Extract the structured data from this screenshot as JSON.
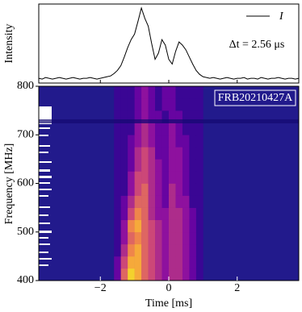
{
  "chart_data": [
    {
      "type": "line",
      "ylabel": "Intensity",
      "annotation": "Δt = 2.56 μs",
      "x": [
        -3.8,
        -3.7,
        -3.6,
        -3.5,
        -3.4,
        -3.3,
        -3.2,
        -3.1,
        -3.0,
        -2.9,
        -2.8,
        -2.7,
        -2.6,
        -2.5,
        -2.4,
        -2.3,
        -2.2,
        -2.1,
        -2.0,
        -1.9,
        -1.8,
        -1.7,
        -1.6,
        -1.5,
        -1.4,
        -1.3,
        -1.2,
        -1.1,
        -1.0,
        -0.9,
        -0.8,
        -0.7,
        -0.6,
        -0.5,
        -0.4,
        -0.3,
        -0.2,
        -0.1,
        0.0,
        0.1,
        0.2,
        0.3,
        0.4,
        0.5,
        0.6,
        0.7,
        0.8,
        0.9,
        1.0,
        1.1,
        1.2,
        1.3,
        1.4,
        1.5,
        1.6,
        1.7,
        1.8,
        1.9,
        2.0,
        2.1,
        2.2,
        2.3,
        2.4,
        2.5,
        2.6,
        2.7,
        2.8,
        2.9,
        3.0,
        3.1,
        3.2,
        3.3,
        3.4,
        3.5,
        3.6,
        3.7,
        3.8
      ],
      "series": [
        {
          "name": "I",
          "color": "#000000",
          "values": [
            0.06,
            0.05,
            0.07,
            0.06,
            0.05,
            0.06,
            0.07,
            0.06,
            0.05,
            0.06,
            0.07,
            0.06,
            0.05,
            0.06,
            0.06,
            0.07,
            0.06,
            0.05,
            0.06,
            0.07,
            0.08,
            0.09,
            0.12,
            0.16,
            0.22,
            0.33,
            0.45,
            0.55,
            0.62,
            0.78,
            0.95,
            0.82,
            0.72,
            0.5,
            0.3,
            0.38,
            0.55,
            0.48,
            0.3,
            0.24,
            0.4,
            0.52,
            0.48,
            0.42,
            0.33,
            0.24,
            0.16,
            0.11,
            0.08,
            0.07,
            0.06,
            0.07,
            0.06,
            0.05,
            0.06,
            0.07,
            0.06,
            0.05,
            0.06,
            0.06,
            0.07,
            0.05,
            0.06,
            0.06,
            0.05,
            0.07,
            0.06,
            0.05,
            0.06,
            0.06,
            0.07,
            0.06,
            0.05,
            0.06,
            0.06,
            0.05,
            0.06
          ]
        }
      ],
      "xlim": [
        -3.8,
        3.8
      ],
      "ylim": [
        0,
        1
      ],
      "xticks": [
        -2,
        0,
        2
      ]
    },
    {
      "type": "heatmap",
      "xlabel": "Time [ms]",
      "ylabel": "Frequency [MHz]",
      "label": "FRB20210427A",
      "colormap": [
        "#0d0887",
        "#7e03a8",
        "#cc4778",
        "#f89540",
        "#f0f921"
      ],
      "background_color": "#221a8c",
      "x_edges": [
        -1.6,
        -1.4,
        -1.2,
        -1.0,
        -0.8,
        -0.6,
        -0.4,
        -0.2,
        0.0,
        0.2,
        0.4,
        0.6,
        0.8,
        1.0
      ],
      "y_edges": [
        400,
        425,
        450,
        475,
        500,
        525,
        550,
        575,
        600,
        625,
        650,
        675,
        700,
        725,
        750,
        775,
        800
      ],
      "z": [
        [
          0.2,
          0.6,
          0.9,
          0.8,
          0.6,
          0.5,
          0.4,
          0.3,
          0.4,
          0.4,
          0.3,
          0.2,
          0.1
        ],
        [
          0.2,
          0.5,
          0.8,
          0.8,
          0.6,
          0.5,
          0.4,
          0.3,
          0.4,
          0.4,
          0.3,
          0.2,
          0.1
        ],
        [
          0.1,
          0.4,
          0.7,
          0.8,
          0.6,
          0.5,
          0.4,
          0.3,
          0.4,
          0.4,
          0.3,
          0.2,
          0.1
        ],
        [
          0.1,
          0.3,
          0.6,
          0.7,
          0.6,
          0.5,
          0.4,
          0.3,
          0.4,
          0.4,
          0.3,
          0.2,
          0.1
        ],
        [
          0.1,
          0.3,
          0.7,
          0.8,
          0.6,
          0.5,
          0.4,
          0.3,
          0.4,
          0.4,
          0.3,
          0.2,
          0.1
        ],
        [
          0.1,
          0.2,
          0.5,
          0.7,
          0.6,
          0.4,
          0.3,
          0.3,
          0.4,
          0.4,
          0.3,
          0.2,
          0.1
        ],
        [
          0.1,
          0.2,
          0.4,
          0.6,
          0.6,
          0.4,
          0.3,
          0.2,
          0.4,
          0.3,
          0.3,
          0.1,
          0.1
        ],
        [
          0.1,
          0.1,
          0.3,
          0.5,
          0.6,
          0.4,
          0.3,
          0.2,
          0.4,
          0.3,
          0.2,
          0.1,
          0.1
        ],
        [
          0.1,
          0.1,
          0.3,
          0.5,
          0.5,
          0.4,
          0.3,
          0.2,
          0.3,
          0.3,
          0.2,
          0.1,
          0.1
        ],
        [
          0.1,
          0.1,
          0.2,
          0.4,
          0.5,
          0.4,
          0.3,
          0.2,
          0.3,
          0.3,
          0.2,
          0.1,
          0.1
        ],
        [
          0.1,
          0.1,
          0.2,
          0.4,
          0.5,
          0.4,
          0.2,
          0.2,
          0.3,
          0.3,
          0.2,
          0.1,
          0.1
        ],
        [
          0.1,
          0.1,
          0.2,
          0.3,
          0.4,
          0.3,
          0.2,
          0.2,
          0.3,
          0.2,
          0.2,
          0.1,
          0.1
        ],
        [
          0.1,
          0.1,
          0.1,
          0.3,
          0.4,
          0.3,
          0.2,
          0.2,
          0.3,
          0.2,
          0.1,
          0.1,
          0.1
        ],
        [
          0.1,
          0.1,
          0.1,
          0.2,
          0.3,
          0.2,
          0.2,
          0.1,
          0.2,
          0.2,
          0.1,
          0.1,
          0.1
        ],
        [
          0.1,
          0.1,
          0.1,
          0.2,
          0.3,
          0.2,
          0.1,
          0.2,
          0.2,
          0.1,
          0.1,
          0.1,
          0.1
        ],
        [
          0.1,
          0.1,
          0.1,
          0.2,
          0.3,
          0.2,
          0.1,
          0.2,
          0.2,
          0.1,
          0.1,
          0.1,
          0.1
        ]
      ],
      "xlim": [
        -3.8,
        3.8
      ],
      "ylim": [
        400,
        800
      ],
      "xticks": [
        {
          "value": -2,
          "label": "−2"
        },
        0,
        2
      ],
      "yticks": [
        400,
        500,
        600,
        700,
        800
      ]
    }
  ]
}
